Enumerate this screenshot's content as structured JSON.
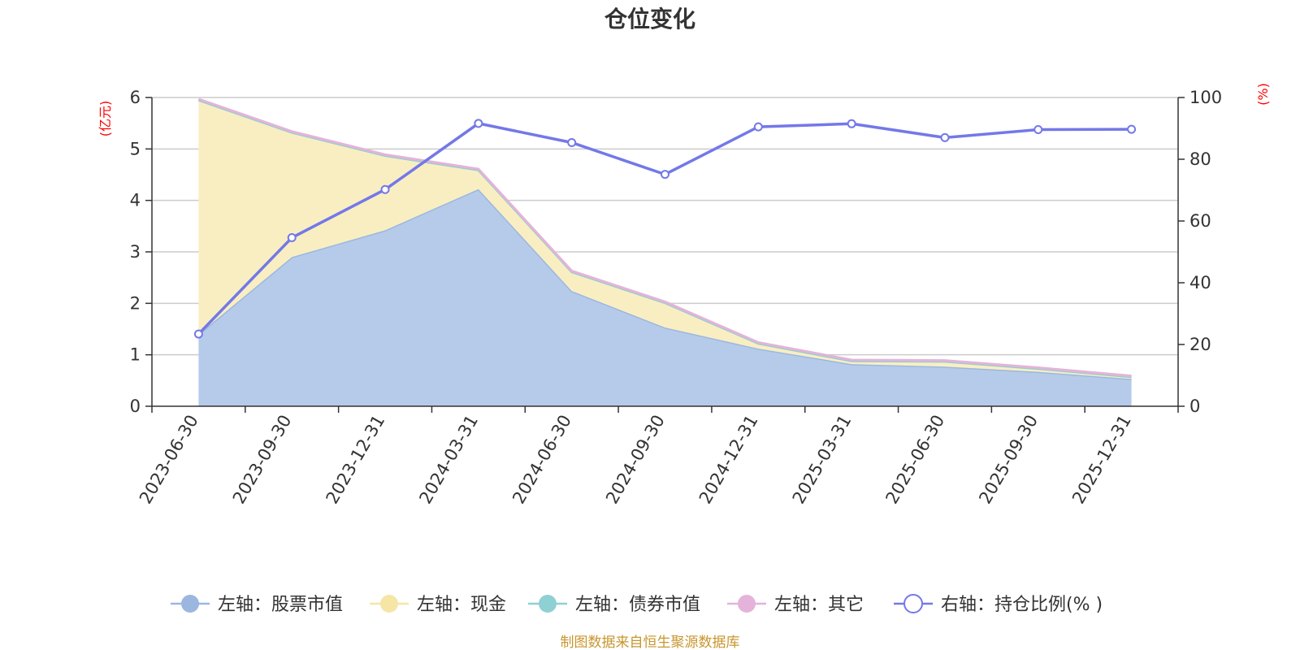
{
  "chart_data": {
    "type": "area",
    "title": "仓位变化",
    "categories": [
      "2023-06-30",
      "2023-09-30",
      "2023-12-31",
      "2024-03-31",
      "2024-06-30",
      "2024-09-30",
      "2024-12-31",
      "2025-03-31",
      "2025-06-30",
      "2025-09-30",
      "2025-12-31"
    ],
    "left_axis": {
      "unit": "(亿元)",
      "ylim": [
        0,
        6
      ],
      "ticks": [
        "0",
        "1",
        "2",
        "3",
        "4",
        "5",
        "6"
      ]
    },
    "right_axis": {
      "unit": "(%)",
      "ylim": [
        0,
        100
      ],
      "ticks": [
        "0",
        "20",
        "40",
        "60",
        "80",
        "100"
      ]
    },
    "grid": true,
    "legend_position": "bottom",
    "series": [
      {
        "name": "左轴：股票市值",
        "axis": "left",
        "type": "area",
        "stack": true,
        "color": "#9bb7e0",
        "fill": "#b6cbea",
        "values": [
          1.4,
          2.9,
          3.42,
          4.22,
          2.24,
          1.53,
          1.12,
          0.82,
          0.77,
          0.67,
          0.53
        ]
      },
      {
        "name": "左轴：现金",
        "axis": "left",
        "type": "area",
        "stack": true,
        "color": "#f5e6a6",
        "fill": "#f9eec2",
        "values": [
          4.55,
          2.42,
          1.45,
          0.37,
          0.37,
          0.48,
          0.1,
          0.06,
          0.1,
          0.06,
          0.04
        ]
      },
      {
        "name": "左轴：债券市值",
        "axis": "left",
        "type": "area",
        "stack": true,
        "color": "#8fd0d3",
        "fill": "#a8dcde",
        "values": [
          0,
          0,
          0,
          0,
          0,
          0,
          0,
          0,
          0,
          0,
          0
        ]
      },
      {
        "name": "左轴：其它",
        "axis": "left",
        "type": "area",
        "stack": true,
        "color": "#e5b3d9",
        "fill": "#efcce6",
        "values": [
          0.02,
          0.02,
          0.02,
          0.02,
          0.02,
          0.02,
          0.02,
          0.02,
          0.02,
          0.02,
          0.02
        ]
      },
      {
        "name": "右轴：持仓比例(% )",
        "axis": "right",
        "type": "line",
        "color": "#7378e8",
        "values": [
          23.4,
          54.6,
          70.2,
          91.6,
          85.4,
          75.1,
          90.5,
          91.5,
          87.0,
          89.6,
          89.7
        ]
      }
    ],
    "source": "制图数据来自恒生聚源数据库"
  }
}
